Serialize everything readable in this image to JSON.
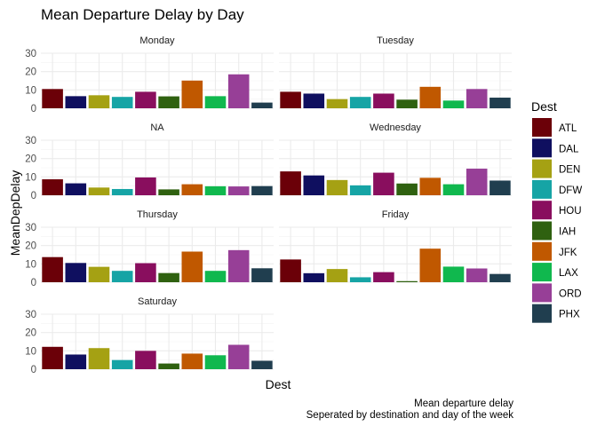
{
  "chart_data": {
    "type": "bar",
    "title": "Mean Departure Delay by Day",
    "xlabel": "Dest",
    "ylabel": "MeanDepDelay",
    "ylim": [
      0,
      30
    ],
    "yticks": [
      "0",
      "10",
      "20",
      "30"
    ],
    "grid": true,
    "legend": {
      "title": "Dest",
      "position": "right"
    },
    "caption": [
      "Mean departure delay",
      "Seperated by destination and day of the week"
    ],
    "categories": [
      "ATL",
      "DAL",
      "DEN",
      "DFW",
      "HOU",
      "IAH",
      "JFK",
      "LAX",
      "ORD",
      "PHX"
    ],
    "colors": [
      "#6b0008",
      "#0f0f5f",
      "#a5a113",
      "#16a4a5",
      "#890e5e",
      "#2f6110",
      "#c05800",
      "#10b84e",
      "#973f97",
      "#203e4f"
    ],
    "panels": [
      {
        "label": "Monday",
        "values": [
          10.5,
          6.6,
          7.1,
          6.2,
          9.0,
          6.5,
          15.1,
          6.6,
          18.5,
          3.1
        ]
      },
      {
        "label": "Tuesday",
        "values": [
          9.0,
          8.0,
          5.0,
          6.2,
          8.0,
          4.7,
          11.7,
          4.2,
          10.5,
          5.8
        ]
      },
      {
        "label": "NA",
        "values": [
          8.7,
          6.5,
          4.2,
          3.4,
          9.7,
          3.2,
          6.0,
          4.9,
          4.8,
          5.0
        ]
      },
      {
        "label": "Wednesday",
        "values": [
          13.0,
          10.8,
          8.3,
          5.4,
          12.3,
          6.4,
          9.5,
          6.0,
          14.5,
          8.0
        ]
      },
      {
        "label": "Thursday",
        "values": [
          13.7,
          10.5,
          8.4,
          6.2,
          10.4,
          5.0,
          16.7,
          6.2,
          17.5,
          7.6
        ]
      },
      {
        "label": "Friday",
        "values": [
          12.4,
          4.9,
          7.2,
          2.7,
          5.5,
          0.6,
          18.3,
          8.5,
          7.5,
          4.5
        ]
      },
      {
        "label": "Saturday",
        "values": [
          12.2,
          8.0,
          11.5,
          5.0,
          10.0,
          3.1,
          8.5,
          7.6,
          13.3,
          4.6
        ]
      }
    ]
  }
}
